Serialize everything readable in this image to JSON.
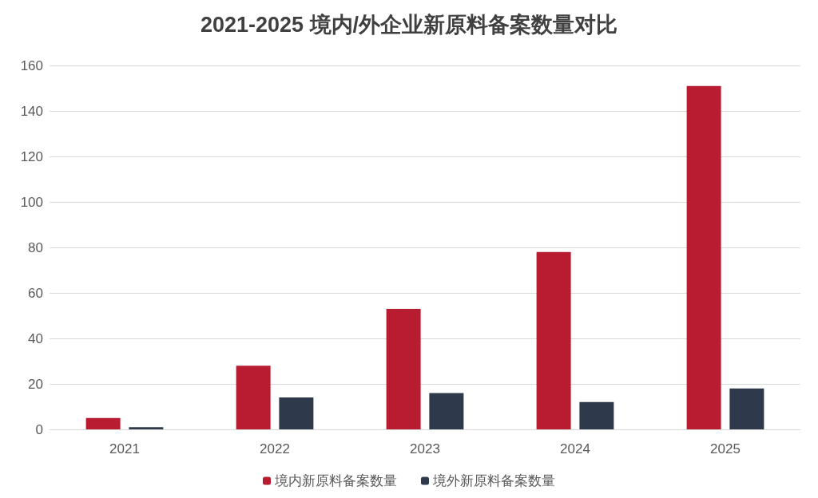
{
  "chart_data": {
    "type": "bar",
    "title": "2021-2025 境内/外企业新原料备案数量对比",
    "categories": [
      "2021",
      "2022",
      "2023",
      "2024",
      "2025"
    ],
    "series": [
      {
        "name": "境内新原料备案数量",
        "color": "#b81c30",
        "values": [
          5,
          28,
          53,
          78,
          151
        ]
      },
      {
        "name": "境外新原料备案数量",
        "color": "#2e3a4c",
        "values": [
          1,
          14,
          16,
          12,
          18
        ]
      }
    ],
    "ylim": [
      0,
      160
    ],
    "yticks": [
      0,
      20,
      40,
      60,
      80,
      100,
      120,
      140,
      160
    ],
    "grid": "y",
    "legend": "bottom"
  }
}
